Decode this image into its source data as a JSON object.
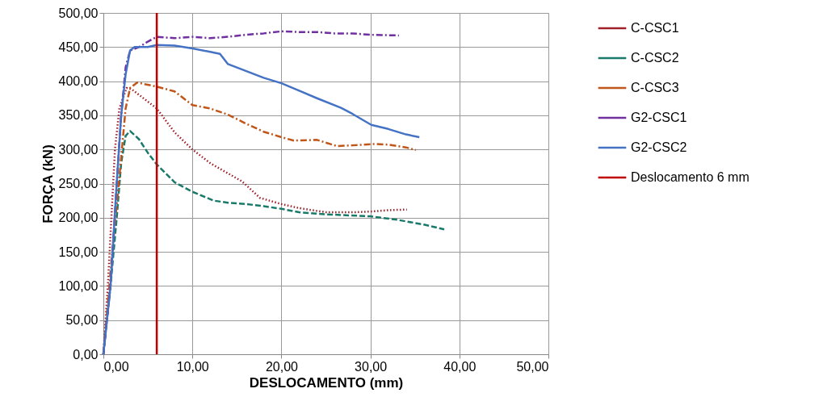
{
  "chart_data": {
    "type": "line",
    "xlabel": "DESLOCAMENTO (mm)",
    "ylabel": "FORÇA (kN)",
    "xlim": [
      0,
      50
    ],
    "ylim": [
      0,
      500
    ],
    "xticks": [
      {
        "value": 0,
        "label": "0,00"
      },
      {
        "value": 10,
        "label": "10,00"
      },
      {
        "value": 20,
        "label": "20,00"
      },
      {
        "value": 30,
        "label": "30,00"
      },
      {
        "value": 40,
        "label": "40,00"
      },
      {
        "value": 50,
        "label": "50,00"
      }
    ],
    "yticks": [
      {
        "value": 0,
        "label": "0,00"
      },
      {
        "value": 50,
        "label": "50,00"
      },
      {
        "value": 100,
        "label": "100,00"
      },
      {
        "value": 150,
        "label": "150,00"
      },
      {
        "value": 200,
        "label": "200,00"
      },
      {
        "value": 250,
        "label": "250,00"
      },
      {
        "value": 300,
        "label": "300,00"
      },
      {
        "value": 350,
        "label": "350,00"
      },
      {
        "value": 400,
        "label": "400,00"
      },
      {
        "value": 450,
        "label": "450,00"
      },
      {
        "value": 500,
        "label": "500,00"
      }
    ],
    "grid": true,
    "legend": "right",
    "marker": "none",
    "series": [
      {
        "name": "C-CSC1",
        "color": "#a0202a",
        "line_style": "dotted",
        "x": [
          0,
          0.5,
          0.9,
          1.3,
          1.8,
          2.6,
          3.2,
          4.5,
          6,
          8,
          10,
          12,
          14,
          15.6,
          17.6,
          20,
          22,
          25,
          28,
          30,
          32,
          34.1
        ],
        "values": [
          0,
          100,
          200,
          300,
          360,
          390,
          388,
          375,
          360,
          325,
          300,
          280,
          265,
          253,
          229,
          220,
          214,
          208,
          208,
          209,
          211,
          212
        ]
      },
      {
        "name": "C-CSC2",
        "color": "#1a7a6a",
        "line_style": "dashed",
        "x": [
          0,
          0.8,
          1.5,
          2,
          2.5,
          3,
          4,
          5,
          6,
          8,
          10,
          12.4,
          14,
          16,
          18,
          20,
          22,
          25,
          30,
          33,
          36,
          38.3
        ],
        "values": [
          0,
          100,
          200,
          280,
          320,
          327,
          315,
          295,
          278,
          252,
          238,
          225,
          222,
          220,
          217,
          213,
          208,
          205,
          202,
          197,
          190,
          183
        ]
      },
      {
        "name": "C-CSC3",
        "color": "#c0561a",
        "line_style": "dashdot",
        "x": [
          0,
          1,
          1.8,
          2.5,
          3,
          3.8,
          6,
          8,
          10,
          12,
          14,
          16,
          18,
          20,
          21.4,
          24,
          26.2,
          28,
          30.5,
          32,
          34,
          35.1
        ],
        "values": [
          0,
          150,
          260,
          360,
          390,
          398,
          392,
          385,
          365,
          360,
          351,
          338,
          326,
          318,
          313,
          314,
          305,
          306,
          308,
          307,
          303,
          299
        ]
      },
      {
        "name": "G2-CSC1",
        "color": "#7030a0",
        "line_style": "dashdot",
        "x": [
          0,
          0.8,
          1.5,
          2,
          2.5,
          3,
          4,
          5,
          6,
          8,
          10,
          12,
          14,
          16,
          18,
          20,
          22,
          24,
          26,
          28,
          30,
          33.2
        ],
        "values": [
          0,
          100,
          250,
          350,
          420,
          445,
          450,
          458,
          465,
          463,
          465,
          463,
          465,
          468,
          470,
          473,
          472,
          472,
          470,
          470,
          468,
          467
        ]
      },
      {
        "name": "G2-CSC2",
        "color": "#4472c4",
        "line_style": "solid",
        "x": [
          0,
          0.8,
          1.5,
          2,
          2.5,
          3,
          3.5,
          5,
          6,
          8,
          10,
          12,
          13.1,
          14,
          16,
          18,
          20,
          22,
          24,
          26.7,
          28,
          30.1,
          32,
          34,
          35.5
        ],
        "values": [
          0,
          100,
          250,
          350,
          410,
          445,
          450,
          450,
          453,
          452,
          448,
          443,
          440,
          425,
          415,
          405,
          397,
          386,
          375,
          361,
          352,
          336,
          330,
          322,
          318
        ]
      },
      {
        "name": "Deslocamento 6 mm",
        "color": "#c00000",
        "line_style": "solid",
        "x": [
          6,
          6
        ],
        "values": [
          0,
          500
        ]
      }
    ]
  }
}
